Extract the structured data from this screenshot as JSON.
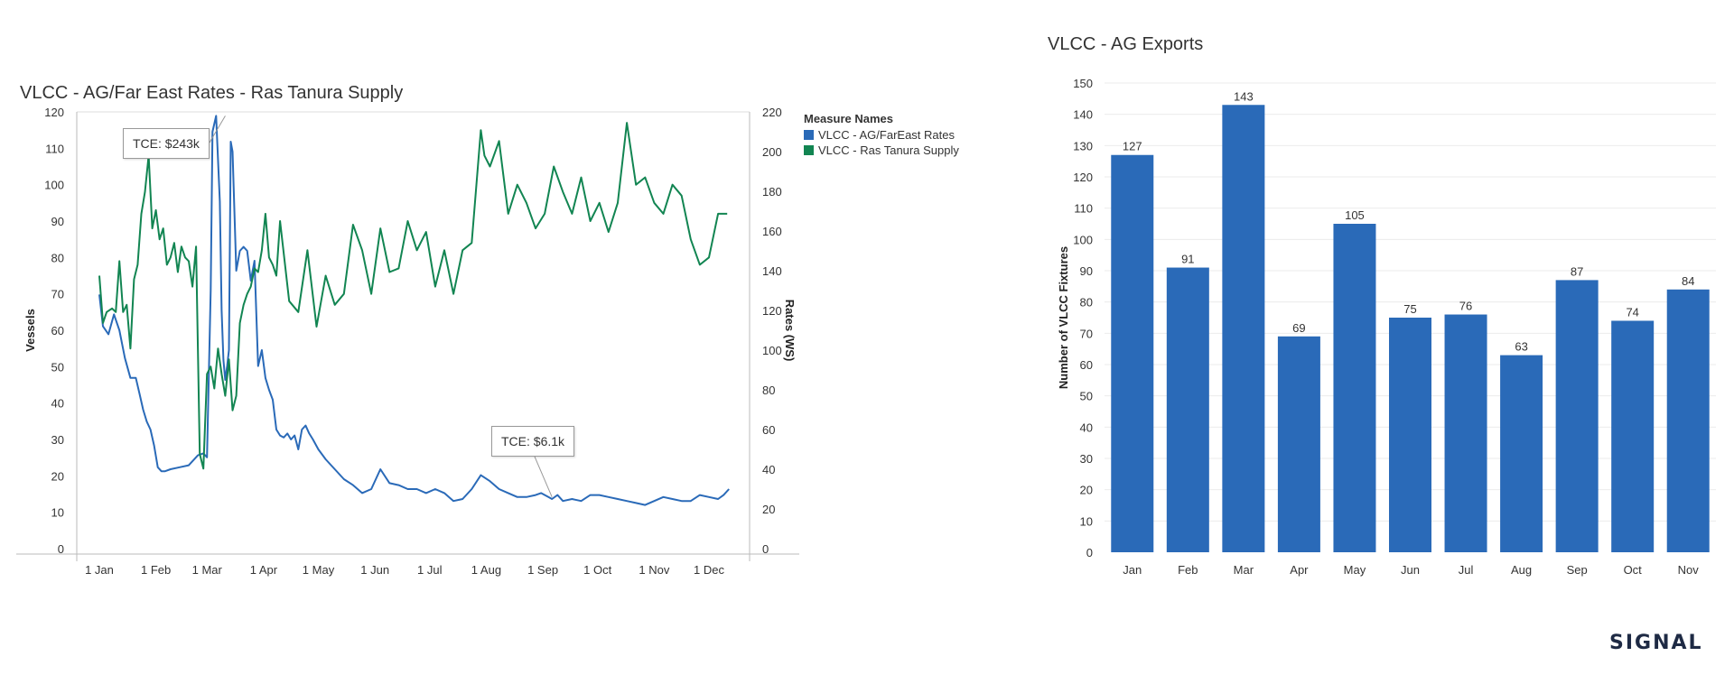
{
  "chart_data": [
    {
      "type": "line",
      "title": "VLCC - AG/Far East Rates - Ras Tanura Supply",
      "ylabel": "Vessels",
      "y2label": "Rates (WS)",
      "ylim": [
        0,
        120
      ],
      "y2lim": [
        0,
        220
      ],
      "yticks": [
        0,
        10,
        20,
        30,
        40,
        50,
        60,
        70,
        80,
        90,
        100,
        110,
        120
      ],
      "y2ticks": [
        0,
        20,
        40,
        60,
        80,
        100,
        120,
        140,
        160,
        180,
        200,
        220
      ],
      "xticks": [
        "1 Jan",
        "1 Feb",
        "1 Mar",
        "1 Apr",
        "1 May",
        "1 Jun",
        "1 Jul",
        "1 Aug",
        "1 Sep",
        "1 Oct",
        "1 Nov",
        "1 Dec"
      ],
      "legend_title": "Measure Names",
      "legend_position": "top-right",
      "annotations": [
        {
          "text": "TCE: $243k",
          "day": 70,
          "value_ws": 218
        },
        {
          "text": "TCE: $6.1k",
          "day": 249,
          "value_ws": 26
        }
      ],
      "series": [
        {
          "name": "VLCC - AG/FarEast Rates",
          "axis": "right",
          "color": "#2a6ab8",
          "x": [
            1,
            2,
            3,
            6,
            9,
            12,
            15,
            18,
            21,
            23,
            25,
            27,
            29,
            31,
            33,
            35,
            37,
            40,
            45,
            50,
            55,
            58,
            60,
            62,
            63,
            65,
            67,
            68,
            69,
            70,
            71,
            72,
            73,
            74,
            76,
            78,
            80,
            82,
            84,
            86,
            88,
            90,
            92,
            94,
            96,
            98,
            100,
            102,
            104,
            106,
            108,
            110,
            112,
            114,
            116,
            118,
            121,
            125,
            130,
            135,
            140,
            145,
            150,
            155,
            160,
            165,
            170,
            175,
            180,
            185,
            190,
            195,
            200,
            205,
            210,
            215,
            220,
            225,
            230,
            235,
            240,
            243,
            247,
            249,
            252,
            255,
            260,
            265,
            270,
            275,
            280,
            285,
            290,
            295,
            300,
            305,
            310,
            315,
            320,
            325,
            330,
            335,
            340,
            343,
            346
          ],
          "y": [
            128,
            120,
            112,
            108,
            118,
            110,
            96,
            86,
            86,
            78,
            70,
            64,
            60,
            52,
            41,
            39,
            39,
            40,
            41,
            42,
            47,
            48,
            46,
            130,
            210,
            218,
            175,
            120,
            95,
            85,
            92,
            100,
            205,
            200,
            140,
            150,
            152,
            150,
            135,
            145,
            92,
            100,
            86,
            80,
            75,
            60,
            57,
            56,
            58,
            55,
            57,
            50,
            60,
            62,
            58,
            55,
            50,
            45,
            40,
            35,
            32,
            28,
            30,
            40,
            33,
            32,
            30,
            30,
            28,
            30,
            28,
            24,
            25,
            30,
            37,
            34,
            30,
            28,
            26,
            26,
            27,
            28,
            26,
            25,
            27,
            24,
            25,
            24,
            27,
            27,
            26,
            25,
            24,
            23,
            22,
            24,
            26,
            25,
            24,
            24,
            27,
            26,
            25,
            27,
            30
          ]
        },
        {
          "name": "VLCC - Ras Tanura Supply",
          "axis": "left",
          "color": "#128552",
          "x": [
            1,
            3,
            5,
            8,
            10,
            12,
            14,
            16,
            18,
            20,
            22,
            24,
            26,
            28,
            30,
            32,
            34,
            36,
            38,
            40,
            42,
            44,
            46,
            48,
            50,
            52,
            54,
            56,
            58,
            60,
            62,
            64,
            66,
            68,
            70,
            72,
            74,
            76,
            78,
            80,
            82,
            84,
            86,
            88,
            90,
            92,
            94,
            96,
            98,
            100,
            105,
            110,
            115,
            120,
            125,
            130,
            135,
            140,
            145,
            150,
            155,
            160,
            165,
            170,
            175,
            180,
            185,
            190,
            195,
            200,
            205,
            210,
            212,
            215,
            220,
            225,
            230,
            235,
            240,
            245,
            250,
            255,
            260,
            265,
            270,
            275,
            280,
            285,
            290,
            295,
            300,
            305,
            310,
            315,
            320,
            325,
            330,
            335,
            340,
            345
          ],
          "y": [
            75,
            62,
            65,
            66,
            65,
            79,
            65,
            67,
            55,
            74,
            78,
            92,
            98,
            108,
            88,
            93,
            85,
            88,
            78,
            80,
            84,
            76,
            83,
            80,
            79,
            72,
            83,
            26,
            22,
            48,
            50,
            44,
            55,
            48,
            42,
            52,
            38,
            42,
            62,
            67,
            70,
            72,
            77,
            76,
            82,
            92,
            80,
            78,
            75,
            90,
            68,
            65,
            82,
            61,
            75,
            67,
            70,
            89,
            82,
            70,
            88,
            76,
            77,
            90,
            82,
            87,
            72,
            82,
            70,
            82,
            84,
            115,
            108,
            105,
            112,
            92,
            100,
            95,
            88,
            92,
            105,
            98,
            92,
            102,
            90,
            95,
            87,
            95,
            117,
            100,
            102,
            95,
            92,
            100,
            97,
            85,
            78,
            80,
            92,
            92
          ]
        }
      ]
    },
    {
      "type": "bar",
      "title": "VLCC - AG Exports",
      "ylabel": "Number of VLCC Fixtures",
      "ylim": [
        0,
        150
      ],
      "yticks": [
        0,
        10,
        20,
        30,
        40,
        50,
        60,
        70,
        80,
        90,
        100,
        110,
        120,
        130,
        140,
        150
      ],
      "categories": [
        "Jan",
        "Feb",
        "Mar",
        "Apr",
        "May",
        "Jun",
        "Jul",
        "Aug",
        "Sep",
        "Oct",
        "Nov"
      ],
      "values": [
        127,
        91,
        143,
        69,
        105,
        75,
        76,
        63,
        87,
        74,
        84
      ],
      "color": "#2a6ab8",
      "grid": true,
      "data_labels": true
    }
  ],
  "logo": {
    "text": "SIGNAL"
  }
}
